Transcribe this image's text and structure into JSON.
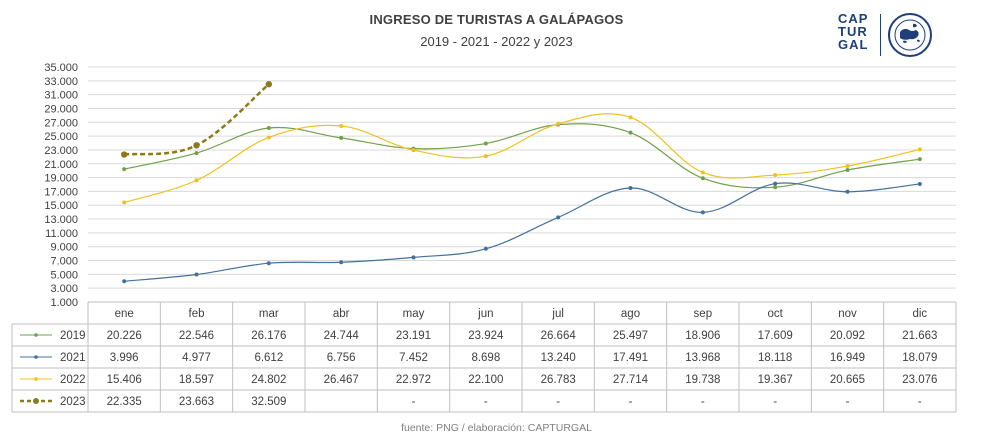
{
  "title": "INGRESO DE TURISTAS A GALÁPAGOS",
  "subtitle": "2019 - 2021 - 2022 y 2023",
  "logo": {
    "lines": [
      "CAP",
      "TUR",
      "GAL"
    ],
    "seal_icon": "galapagos-islands-seal-icon"
  },
  "footer": "fuente: PNG / elaboración: CAPTURGAL",
  "chart_data": {
    "type": "line",
    "title": "INGRESO DE TURISTAS A GALÁPAGOS",
    "subtitle": "2019 - 2021 - 2022 y 2023",
    "categories": [
      "ene",
      "feb",
      "mar",
      "abr",
      "may",
      "jun",
      "jul",
      "ago",
      "sep",
      "oct",
      "nov",
      "dic"
    ],
    "ylim": [
      1000,
      35000
    ],
    "yticks": [
      "35.000",
      "33.000",
      "31.000",
      "29.000",
      "27.000",
      "25.000",
      "23.000",
      "21.000",
      "19.000",
      "17.000",
      "15.000",
      "13.000",
      "11.000",
      "9.000",
      "7.000",
      "5.000",
      "3.000",
      "1.000"
    ],
    "grid": true,
    "legend": "data-table",
    "series": [
      {
        "name": "2019",
        "color": "#70a04a",
        "dashed": false,
        "values": [
          20226,
          22546,
          26176,
          24744,
          23191,
          23924,
          26664,
          25497,
          18906,
          17609,
          20092,
          21663
        ],
        "labels": [
          "20.226",
          "22.546",
          "26.176",
          "24.744",
          "23.191",
          "23.924",
          "26.664",
          "25.497",
          "18.906",
          "17.609",
          "20.092",
          "21.663"
        ]
      },
      {
        "name": "2021",
        "color": "#44709e",
        "dashed": false,
        "values": [
          3996,
          4977,
          6612,
          6756,
          7452,
          8698,
          13240,
          17491,
          13968,
          18118,
          16949,
          18079
        ],
        "labels": [
          "3.996",
          "4.977",
          "6.612",
          "6.756",
          "7.452",
          "8.698",
          "13.240",
          "17.491",
          "13.968",
          "18.118",
          "16.949",
          "18.079"
        ]
      },
      {
        "name": "2022",
        "color": "#f0c020",
        "dashed": false,
        "values": [
          15406,
          18597,
          24802,
          26467,
          22972,
          22100,
          26783,
          27714,
          19738,
          19367,
          20665,
          23076
        ],
        "labels": [
          "15.406",
          "18.597",
          "24.802",
          "26.467",
          "22.972",
          "22.100",
          "26.783",
          "27.714",
          "19.738",
          "19.367",
          "20.665",
          "23.076"
        ]
      },
      {
        "name": "2023",
        "color": "#8c7a1e",
        "dashed": true,
        "values": [
          22335,
          23663,
          32509,
          null,
          null,
          null,
          null,
          null,
          null,
          null,
          null,
          null
        ],
        "labels": [
          "22.335",
          "23.663",
          "32.509",
          "",
          "-",
          "-",
          "-",
          "-",
          "-",
          "-",
          "-",
          "-"
        ]
      }
    ]
  }
}
